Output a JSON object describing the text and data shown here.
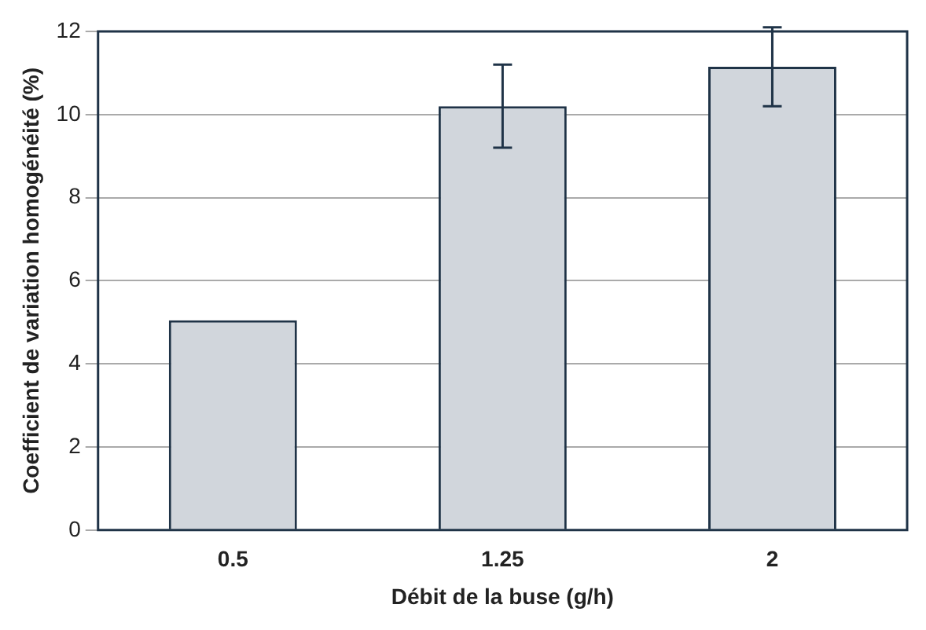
{
  "chart_data": {
    "type": "bar",
    "xlabel": "Débit de la buse (g/h)",
    "ylabel": "Coefficient de variation homogénéité (%)",
    "categories": [
      "0.5",
      "1.25",
      "2"
    ],
    "values": [
      5.05,
      10.2,
      11.15
    ],
    "color": "#d1d6dc",
    "errors": [
      null,
      1.0,
      0.95
    ],
    "ylim": [
      0,
      12
    ],
    "yticks": [
      0,
      2,
      4,
      6,
      8,
      10,
      12
    ],
    "grid": "y"
  }
}
